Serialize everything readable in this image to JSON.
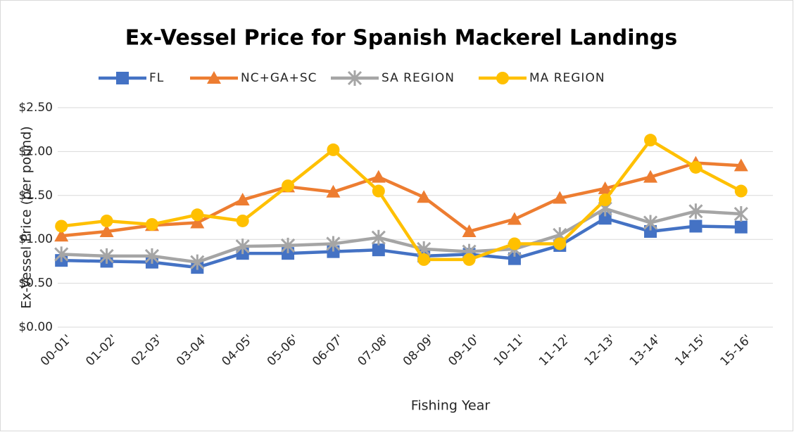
{
  "chart_data": {
    "type": "line",
    "title": "Ex-Vessel Price for Spanish Mackerel Landings",
    "x_label": "Fishing Year",
    "y_label": "Ex-Vessel Price (per pound)",
    "categories": [
      "00-01'",
      "01-02'",
      "02-03'",
      "03-04'",
      "04-05'",
      "05-06'",
      "06-07'",
      "07-08'",
      "08-09'",
      "09-10'",
      "10-11'",
      "11-12'",
      "12-13'",
      "13-14'",
      "14-15'",
      "15-16'"
    ],
    "series": [
      {
        "name": "FL",
        "color": "#4472c4",
        "marker": "square",
        "values": [
          0.76,
          0.75,
          0.74,
          0.68,
          0.84,
          0.84,
          0.86,
          0.88,
          0.81,
          0.83,
          0.78,
          0.93,
          1.24,
          1.09,
          1.15,
          1.14
        ]
      },
      {
        "name": "NC+GA+SC",
        "color": "#ed7d31",
        "marker": "triangle",
        "values": [
          1.04,
          1.09,
          1.16,
          1.19,
          1.45,
          1.6,
          1.54,
          1.71,
          1.48,
          1.09,
          1.23,
          1.47,
          1.58,
          1.71,
          1.87,
          1.84
        ]
      },
      {
        "name": "SA REGION",
        "color": "#a5a5a5",
        "marker": "star",
        "values": [
          0.83,
          0.81,
          0.81,
          0.74,
          0.92,
          0.93,
          0.95,
          1.02,
          0.89,
          0.86,
          0.89,
          1.05,
          1.35,
          1.19,
          1.32,
          1.29
        ]
      },
      {
        "name": "MA REGION",
        "color": "#ffc000",
        "marker": "circle",
        "values": [
          1.15,
          1.21,
          1.17,
          1.28,
          1.21,
          1.61,
          2.02,
          1.55,
          0.77,
          0.77,
          0.95,
          0.95,
          1.45,
          2.13,
          1.82,
          1.55
        ]
      }
    ],
    "ylim": [
      0,
      2.5
    ],
    "yticks": [
      {
        "value": 0,
        "label": "$0.00"
      },
      {
        "value": 0.5,
        "label": "$0.50"
      },
      {
        "value": 1,
        "label": "$1.00"
      },
      {
        "value": 1.5,
        "label": "$1.50"
      },
      {
        "value": 2,
        "label": "$2.00"
      },
      {
        "value": 2.5,
        "label": "$2.50"
      }
    ],
    "grid": true,
    "legend": "top"
  }
}
